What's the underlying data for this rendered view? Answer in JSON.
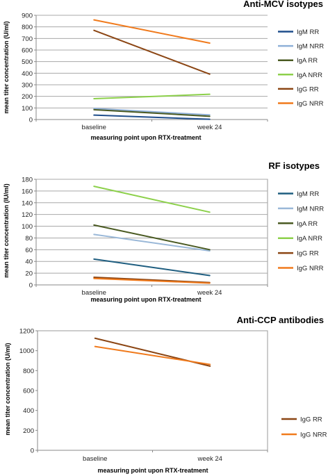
{
  "chart_data": [
    {
      "type": "line",
      "title": "Anti-MCV isotypes",
      "xlabel": "measuring point upon RTX-treatment",
      "ylabel": "mean titer concentration (U/ml)",
      "categories": [
        "baseline",
        "week 24"
      ],
      "ylim": [
        0,
        900
      ],
      "yticks": [
        0,
        100,
        200,
        300,
        400,
        500,
        600,
        700,
        800,
        900
      ],
      "grid": true,
      "legend": "right",
      "series": [
        {
          "name": "IgM RR",
          "color": "#1f4e8c",
          "values": [
            38,
            2
          ]
        },
        {
          "name": "IgM NRR",
          "color": "#8fb0d8",
          "values": [
            95,
            40
          ]
        },
        {
          "name": "IgA RR",
          "color": "#4a5a22",
          "values": [
            85,
            28
          ]
        },
        {
          "name": "IgA NRR",
          "color": "#8cd04a",
          "values": [
            180,
            218
          ]
        },
        {
          "name": "IgG RR",
          "color": "#8b4513",
          "values": [
            770,
            392
          ]
        },
        {
          "name": "IgG NRR",
          "color": "#f07a1c",
          "values": [
            860,
            660
          ]
        }
      ]
    },
    {
      "type": "line",
      "title": "RF isotypes",
      "xlabel": "measuring point upon RTX-treatment",
      "ylabel": "mean titer concentration (IU/ml)",
      "categories": [
        "baseline",
        "week 24"
      ],
      "ylim": [
        0,
        180
      ],
      "yticks": [
        0,
        20,
        40,
        60,
        80,
        100,
        120,
        140,
        160,
        180
      ],
      "grid": true,
      "legend": "right",
      "series": [
        {
          "name": "IgM RR",
          "color": "#1f5e80",
          "values": [
            44,
            16
          ]
        },
        {
          "name": "IgM NRR",
          "color": "#9ab8d8",
          "values": [
            86,
            58
          ]
        },
        {
          "name": "IgA RR",
          "color": "#4a5a22",
          "values": [
            102,
            60
          ]
        },
        {
          "name": "IgA NRR",
          "color": "#8cd04a",
          "values": [
            168,
            124
          ]
        },
        {
          "name": "IgG RR",
          "color": "#8b4513",
          "values": [
            13,
            4
          ]
        },
        {
          "name": "IgG NRR",
          "color": "#f07a1c",
          "values": [
            11,
            3
          ]
        }
      ]
    },
    {
      "type": "line",
      "title": "Anti-CCP antibodies",
      "xlabel": "measuring point upon RTX-treatment",
      "ylabel": "mean titer concentration (U/ml)",
      "categories": [
        "baseline",
        "week 24"
      ],
      "ylim": [
        0,
        1200
      ],
      "yticks": [
        0,
        200,
        400,
        600,
        800,
        1000,
        1200
      ],
      "grid": false,
      "legend": "right",
      "series": [
        {
          "name": "IgG RR",
          "color": "#8b4513",
          "values": [
            1125,
            845
          ]
        },
        {
          "name": "IgG NRR",
          "color": "#f07a1c",
          "values": [
            1042,
            862
          ]
        }
      ]
    }
  ]
}
